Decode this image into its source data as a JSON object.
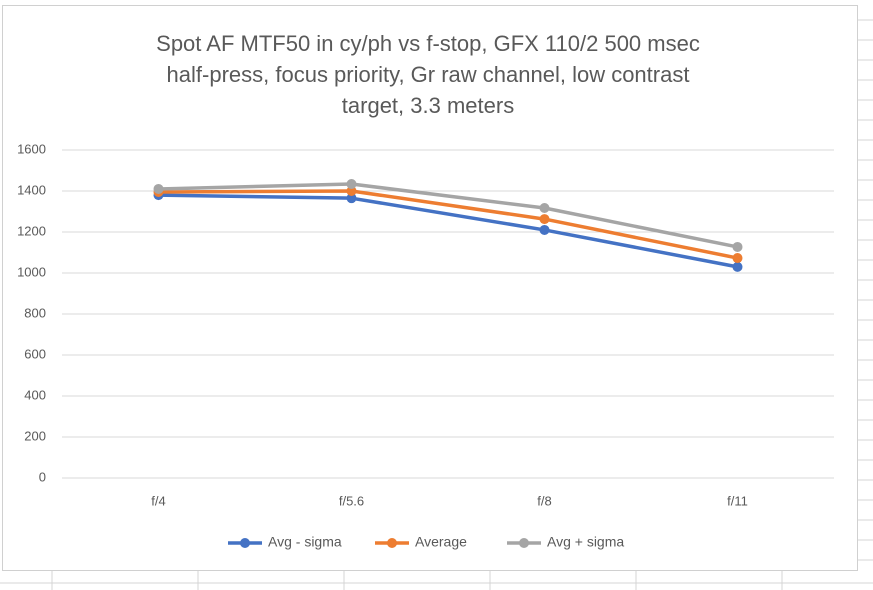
{
  "chart_data": {
    "type": "line",
    "title": [
      "Spot AF MTF50 in cy/ph vs f-stop, GFX 110/2 500 msec",
      "half-press, focus priority, Gr raw channel, low contrast",
      "target, 3.3 meters"
    ],
    "categories": [
      "f/4",
      "f/5.6",
      "f/8",
      "f/11"
    ],
    "series": [
      {
        "name": "Avg - sigma",
        "color": "#4472c4",
        "values": [
          1380,
          1365,
          1210,
          1030
        ]
      },
      {
        "name": "Average",
        "color": "#ed7d31",
        "values": [
          1395,
          1400,
          1263,
          1073
        ]
      },
      {
        "name": "Avg + sigma",
        "color": "#a5a5a5",
        "values": [
          1410,
          1434,
          1317,
          1127
        ]
      }
    ],
    "ylim": [
      0,
      1600
    ],
    "yticks": [
      0,
      200,
      400,
      600,
      800,
      1000,
      1200,
      1400,
      1600
    ],
    "grid": true,
    "legend": "bottom"
  }
}
